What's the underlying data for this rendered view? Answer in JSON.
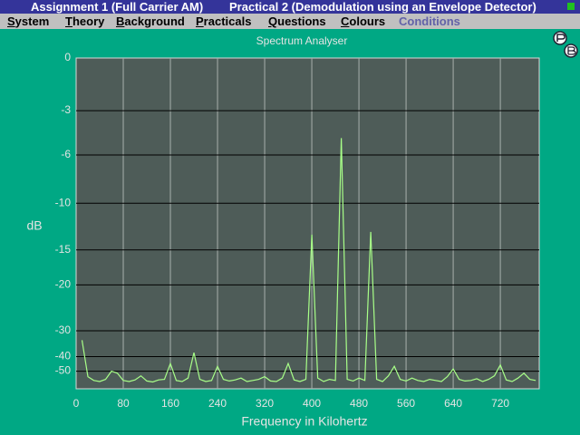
{
  "window": {
    "title_left": "Assignment 1 (Full Carrier AM)",
    "title_right": "Practical 2 (Demodulation using an Envelope Detector)"
  },
  "menu": [
    "System",
    "Theory",
    "Background",
    "Practicals",
    "Questions",
    "Colours",
    "Conditions"
  ],
  "chart_data": {
    "type": "line",
    "title": "Spectrum Analyser",
    "x_label": "Frequency in Kilohertz",
    "y_label": "dB",
    "x": [
      10,
      20,
      30,
      40,
      50,
      60,
      70,
      80,
      90,
      100,
      110,
      120,
      130,
      140,
      150,
      160,
      170,
      180,
      190,
      200,
      210,
      220,
      230,
      240,
      250,
      260,
      270,
      280,
      290,
      300,
      310,
      320,
      330,
      340,
      350,
      360,
      370,
      380,
      390,
      400,
      410,
      420,
      430,
      440,
      450,
      460,
      470,
      480,
      490,
      500,
      510,
      520,
      530,
      540,
      550,
      560,
      570,
      580,
      590,
      600,
      610,
      620,
      630,
      640,
      650,
      660,
      670,
      680,
      690,
      700,
      710,
      720,
      730,
      740,
      750,
      760,
      770,
      780
    ],
    "values": [
      -33,
      -56,
      -62,
      -64,
      -60,
      -50,
      -52,
      -62,
      -64,
      -61,
      -55,
      -63,
      -65,
      -61,
      -60,
      -44,
      -62,
      -64,
      -58,
      -38,
      -60,
      -64,
      -62,
      -46,
      -60,
      -63,
      -61,
      -58,
      -64,
      -62,
      -60,
      -56,
      -63,
      -64,
      -58,
      -44,
      -61,
      -64,
      -60,
      -13.2,
      -58,
      -64,
      -60,
      -62,
      -4.8,
      -60,
      -63,
      -58,
      -62,
      -12.9,
      -60,
      -64,
      -55,
      -46,
      -60,
      -63,
      -58,
      -62,
      -64,
      -60,
      -62,
      -64,
      -56,
      -48,
      -60,
      -63,
      -62,
      -59,
      -64,
      -60,
      -55,
      -45,
      -61,
      -64,
      -58,
      -52,
      -60,
      -62
    ],
    "color": "#a8ff88",
    "xlim": [
      0,
      786
    ],
    "xticks": [
      0,
      80,
      160,
      240,
      320,
      400,
      480,
      560,
      640,
      720
    ],
    "ylim": [
      -100,
      0
    ],
    "yticks": [
      0,
      -3,
      -6,
      -10,
      -15,
      -20,
      -30,
      -40,
      -50
    ],
    "yscale": "sqrt",
    "grid": true
  }
}
